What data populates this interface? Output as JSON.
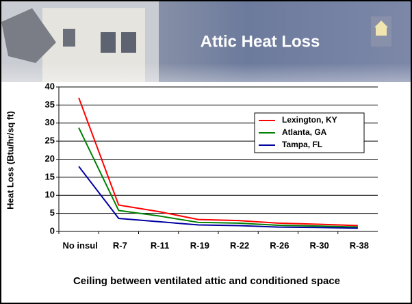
{
  "chart_data": {
    "type": "line",
    "title": "Attic Heat Loss",
    "ylabel": "Heat Loss (Btu/hr/sq ft)",
    "xlabel": "Ceiling between ventilated attic and conditioned space",
    "categories": [
      "No insul",
      "R-7",
      "R-11",
      "R-19",
      "R-22",
      "R-26",
      "R-30",
      "R-38"
    ],
    "series": [
      {
        "name": "Lexington, KY",
        "color": "#ff0000",
        "values": [
          37,
          7.3,
          5.5,
          3.3,
          3,
          2.3,
          2,
          1.6
        ]
      },
      {
        "name": "Atlanta, GA",
        "color": "#008000",
        "values": [
          28.7,
          5.8,
          4.3,
          2.5,
          2.3,
          1.7,
          1.5,
          1.2
        ]
      },
      {
        "name": "Tampa, FL",
        "color": "#0000a0",
        "values": [
          18,
          3.6,
          2.7,
          1.8,
          1.6,
          1.2,
          1.1,
          0.9
        ]
      }
    ],
    "ylim": [
      0,
      40
    ],
    "yticks": [
      0,
      5,
      10,
      15,
      20,
      25,
      30,
      35,
      40
    ],
    "grid": true,
    "legend": "upper right"
  }
}
